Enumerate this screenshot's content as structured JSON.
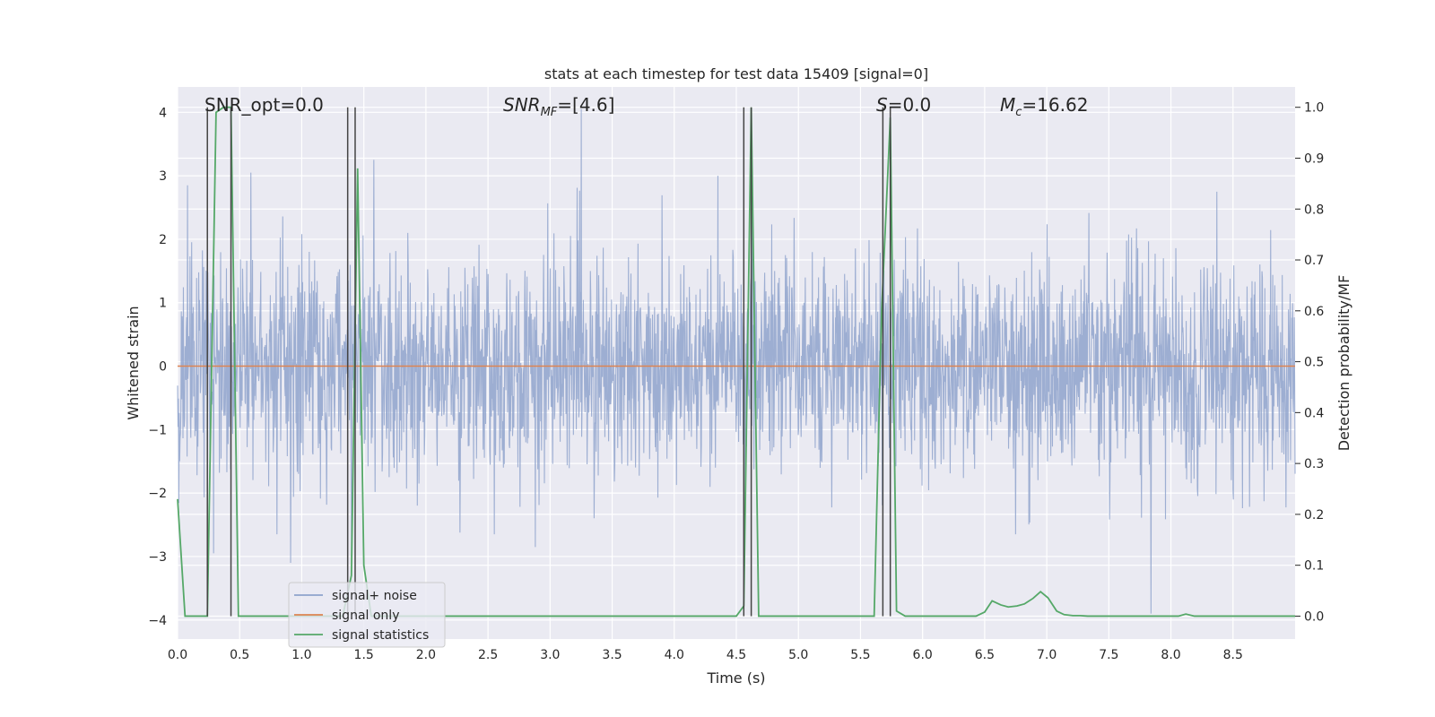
{
  "chart_data": {
    "type": "line",
    "title": "stats at each timestep for test data 15409 [signal=0]",
    "xlabel": "Time (s)",
    "ylabel_left": "Whitened strain",
    "ylabel_right": "Detection probability/MF",
    "xlim": [
      0.0,
      9.0
    ],
    "ylim_left": [
      -4.3,
      4.4
    ],
    "ylim_right": [
      -0.045,
      1.04
    ],
    "x_ticks": [
      "0.0",
      "0.5",
      "1.0",
      "1.5",
      "2.0",
      "2.5",
      "3.0",
      "3.5",
      "4.0",
      "4.5",
      "5.0",
      "5.5",
      "6.0",
      "6.5",
      "7.0",
      "7.5",
      "8.0",
      "8.5"
    ],
    "y_left_ticks": [
      "4",
      "3",
      "2",
      "1",
      "0",
      "−1",
      "−2",
      "−3",
      "−4"
    ],
    "y_right_ticks": [
      "1.0",
      "0.9",
      "0.8",
      "0.7",
      "0.6",
      "0.5",
      "0.4",
      "0.3",
      "0.2",
      "0.1",
      "0.0"
    ],
    "grid": true,
    "annotations": {
      "snr_opt": "SNR_opt=0.0",
      "snr_mf_main": "SNR",
      "snr_mf_sub": "MF",
      "snr_mf_rest": "=[4.6]",
      "s_main": "S",
      "s_rest": "=0.0",
      "mc_main": "M",
      "mc_sub": "c",
      "mc_rest": "=16.62"
    },
    "legend": {
      "placement": "lower-left",
      "entries": [
        "signal+ noise",
        "signal only",
        "signal statistics"
      ]
    },
    "series": [
      {
        "name": "signal+ noise",
        "color": "#8fa3cc",
        "axis": "left",
        "description": "dense noise with standard deviation ~1",
        "noise_sigma": 0.85,
        "seed": 15409,
        "spikes": [
          {
            "x": 0.08,
            "y": 2.85
          },
          {
            "x": 0.29,
            "y": -2.95
          },
          {
            "x": 0.59,
            "y": 3.05
          },
          {
            "x": 0.8,
            "y": -2.65
          },
          {
            "x": 0.91,
            "y": -3.1
          },
          {
            "x": 1.4,
            "y": -3.0
          },
          {
            "x": 1.58,
            "y": 3.25
          },
          {
            "x": 3.25,
            "y": 4.05
          },
          {
            "x": 2.88,
            "y": -2.85
          },
          {
            "x": 4.35,
            "y": 3.0
          },
          {
            "x": 6.75,
            "y": -2.65
          },
          {
            "x": 7.84,
            "y": -3.9
          },
          {
            "x": 8.37,
            "y": 2.75
          },
          {
            "x": 2.55,
            "y": -2.65
          }
        ]
      },
      {
        "name": "signal only",
        "color": "#dd8452",
        "axis": "left",
        "x": [
          0.0,
          9.0
        ],
        "y": [
          0.0,
          0.0
        ]
      },
      {
        "name": "signal statistics",
        "color": "#55a868",
        "axis": "right",
        "x": [
          0.0,
          0.06,
          0.24,
          0.31,
          0.37,
          0.43,
          0.49,
          1.33,
          1.4,
          1.45,
          1.5,
          1.56,
          4.5,
          4.56,
          4.62,
          4.68,
          4.74,
          5.61,
          5.67,
          5.74,
          5.79,
          5.86,
          6.43,
          6.5,
          6.56,
          6.63,
          6.69,
          6.76,
          6.82,
          6.89,
          6.95,
          7.01,
          7.08,
          7.14,
          7.21,
          7.27,
          7.33,
          7.9,
          8.06,
          8.12,
          8.19,
          9.0
        ],
        "y": [
          0.23,
          0.0,
          0.0,
          0.99,
          1.0,
          1.0,
          0.0,
          0.0,
          0.08,
          0.88,
          0.1,
          0.0,
          0.0,
          0.02,
          1.0,
          0.0,
          0.0,
          0.0,
          0.6,
          0.98,
          0.01,
          0.0,
          0.0,
          0.008,
          0.03,
          0.022,
          0.018,
          0.02,
          0.024,
          0.035,
          0.048,
          0.036,
          0.01,
          0.003,
          0.001,
          0.001,
          0.0,
          0.0,
          0.0,
          0.004,
          0.0,
          0.0
        ]
      }
    ],
    "vertical_lines": {
      "color": "#444444",
      "x": [
        0.24,
        0.43,
        1.37,
        1.43,
        4.56,
        4.62,
        5.68,
        5.74
      ]
    }
  }
}
